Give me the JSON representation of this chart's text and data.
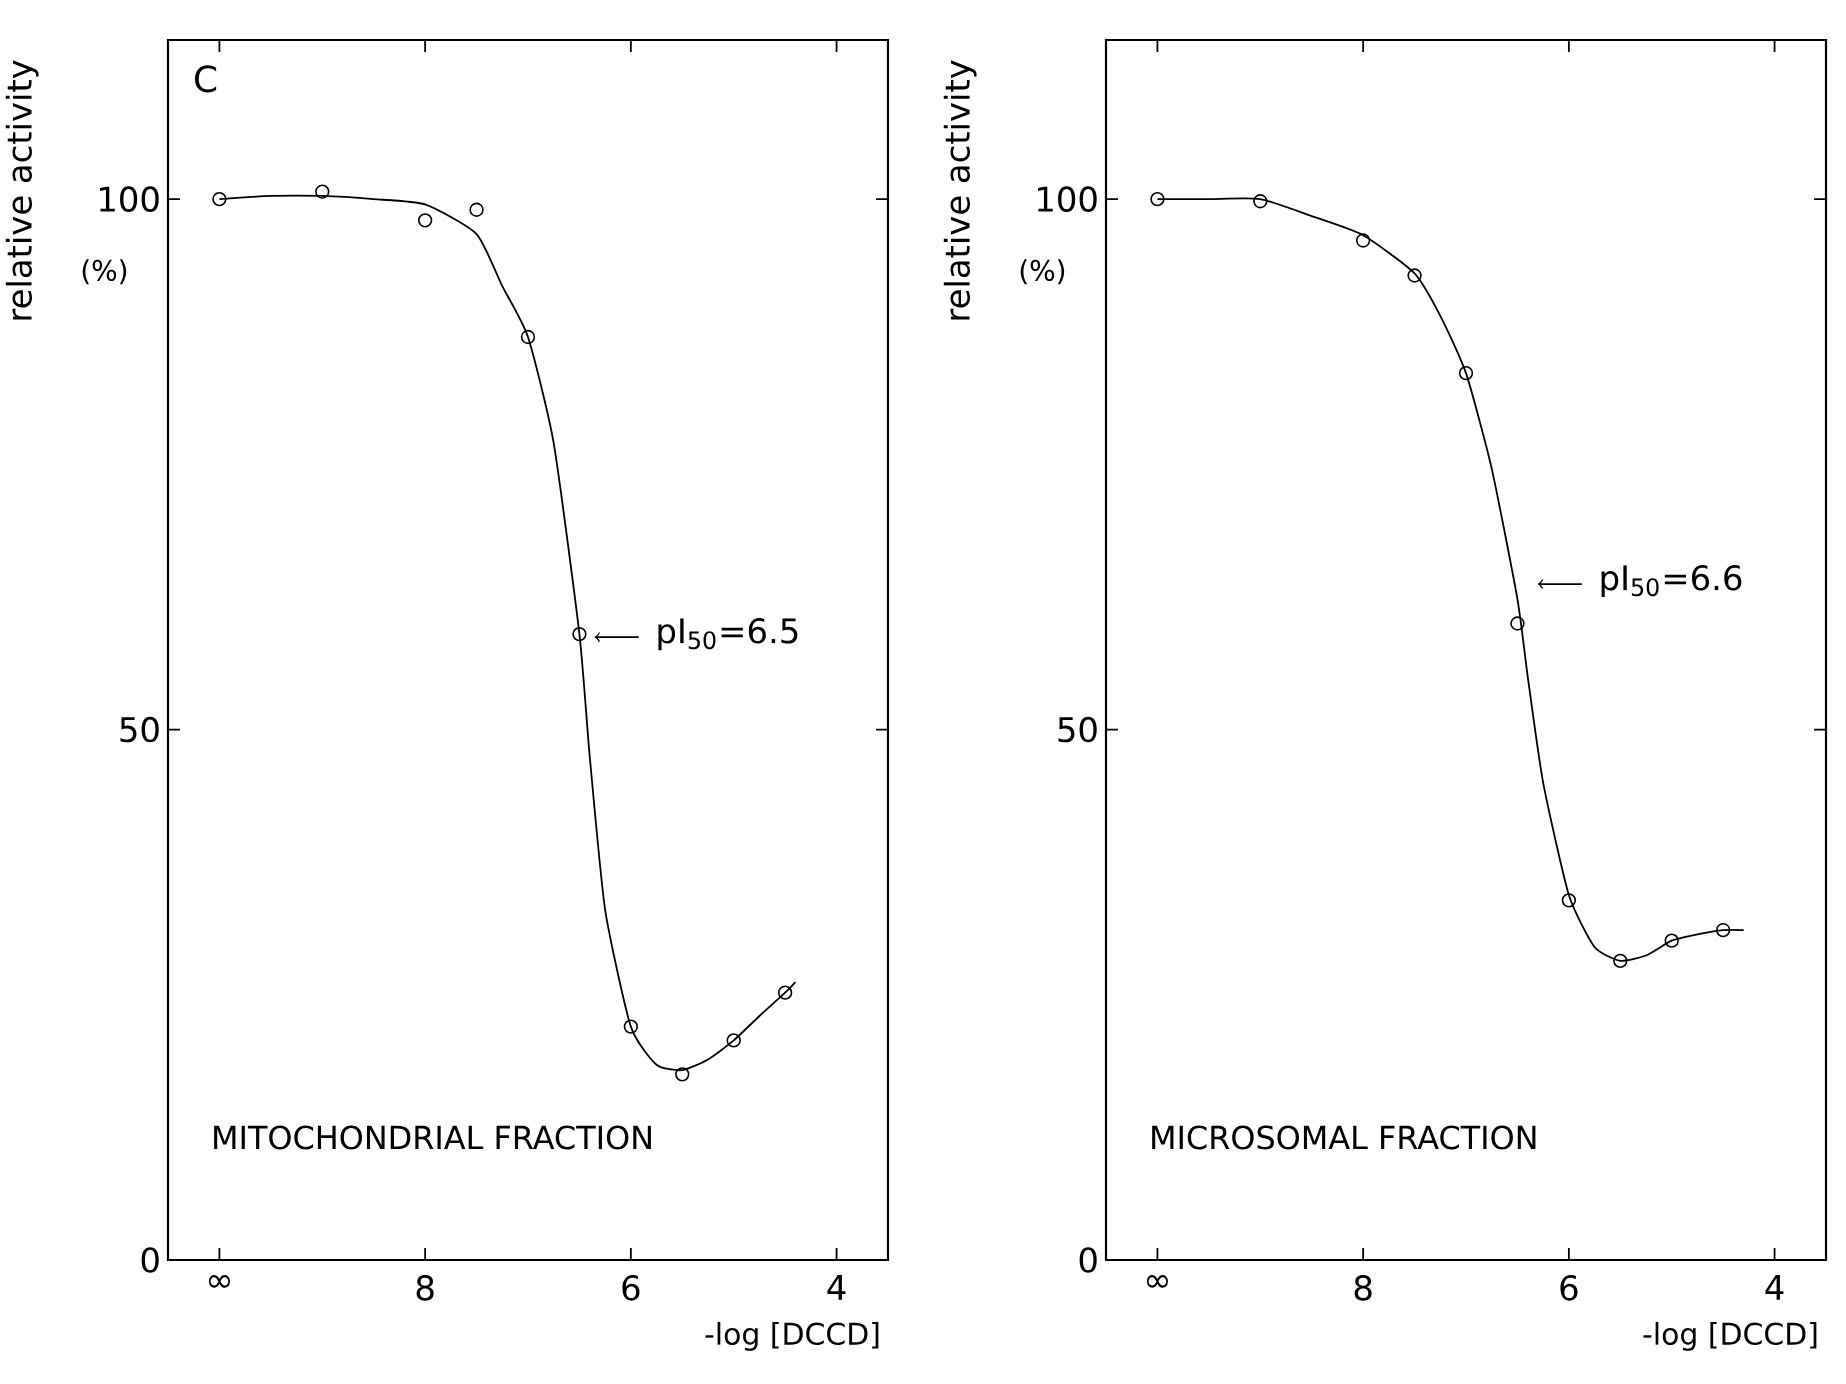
{
  "chart_data": [
    {
      "type": "scatter",
      "title": "MITOCHONDRIAL FRACTION",
      "xlabel": "-log [DCCD]",
      "ylabel": "relative activity",
      "annotations": [
        "C",
        "(%)",
        {
          "text": "pI$_{50}$=6.5",
          "x": 6.5,
          "y": 59
        }
      ],
      "xlim": [
        10.5,
        3.5
      ],
      "ylim": [
        0,
        115
      ],
      "xticks": [
        {
          "value": 10,
          "label": "∞"
        },
        8,
        6,
        4
      ],
      "yticks": [
        0,
        50,
        100
      ],
      "marker": "circle",
      "series": [
        {
          "color": "#000000",
          "x": [
            10,
            9,
            8,
            7.5,
            7,
            6.5,
            6,
            5.5,
            5,
            4.5
          ],
          "values": [
            100,
            100.7,
            98,
            99,
            87,
            59,
            22,
            17.5,
            20.7,
            25.2
          ]
        },
        {
          "type": "line",
          "color": "#000000",
          "marker": "none",
          "x": [
            10,
            9.5,
            9,
            8.5,
            8,
            7.5,
            7.25,
            7,
            6.75,
            6.5,
            6.4,
            6.25,
            6,
            5.75,
            5.5,
            5.25,
            5,
            4.75,
            4.5,
            4.4
          ],
          "values": [
            100,
            100.3,
            100.3,
            100,
            99.5,
            96.7,
            91.8,
            87,
            77,
            59,
            47.5,
            33,
            22,
            18.4,
            17.9,
            18.9,
            20.7,
            23,
            25.2,
            26.2
          ]
        }
      ]
    },
    {
      "type": "scatter",
      "title": "MICROSOMAL FRACTION",
      "xlabel": "-log [DCCD]",
      "ylabel": "relative activity",
      "annotations": [
        "(%)",
        {
          "text": "pI$_{50}$=6.6",
          "x": 6.45,
          "y": 64
        }
      ],
      "xlim": [
        10.5,
        3.5
      ],
      "ylim": [
        0,
        115
      ],
      "xticks": [
        {
          "value": 10,
          "label": "∞"
        },
        8,
        6,
        4
      ],
      "yticks": [
        0,
        50,
        100
      ],
      "marker": "circle",
      "series": [
        {
          "color": "#000000",
          "x": [
            10,
            9,
            8,
            7.5,
            7,
            6.5,
            6,
            5.5,
            5,
            4.5
          ],
          "values": [
            100,
            99.8,
            96.1,
            92.8,
            83.6,
            60,
            33.9,
            28.2,
            30.1,
            31.1
          ]
        },
        {
          "type": "line",
          "color": "#000000",
          "marker": "none",
          "x": [
            10,
            9.5,
            9,
            8.5,
            8,
            7.5,
            7.25,
            7,
            6.75,
            6.5,
            6.4,
            6.25,
            6,
            5.75,
            5.5,
            5.25,
            5,
            4.75,
            4.5,
            4.3
          ],
          "values": [
            100,
            100,
            100,
            98.4,
            96.6,
            93,
            89,
            83.6,
            74.6,
            62.3,
            55,
            45,
            34.4,
            29.5,
            28.2,
            28.7,
            30.1,
            30.7,
            31.1,
            31.1
          ]
        }
      ]
    }
  ]
}
